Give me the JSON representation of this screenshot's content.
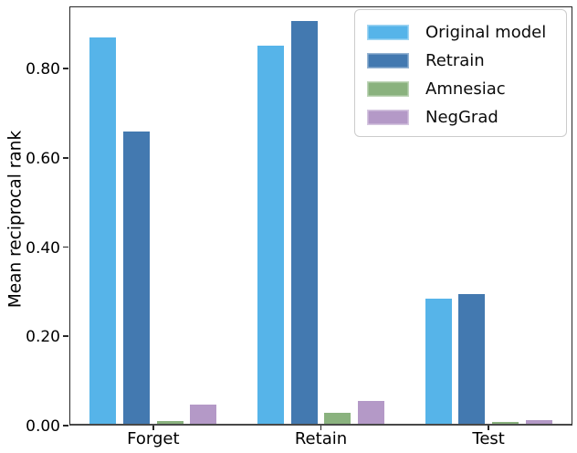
{
  "chart_data": {
    "type": "bar",
    "title": "",
    "xlabel": "",
    "ylabel": "Mean reciprocal rank",
    "categories": [
      "Forget",
      "Retain",
      "Test"
    ],
    "series": [
      {
        "name": "Original model",
        "color": "#56b4e9",
        "values": [
          0.87,
          0.852,
          0.285
        ]
      },
      {
        "name": "Retrain",
        "color": "#4379b0",
        "values": [
          0.66,
          0.908,
          0.295
        ]
      },
      {
        "name": "Amnesiac",
        "color": "#8ab27e",
        "values": [
          0.01,
          0.028,
          0.008
        ]
      },
      {
        "name": "NegGrad",
        "color": "#b499c7",
        "values": [
          0.048,
          0.055,
          0.012
        ]
      }
    ],
    "ylim": [
      0,
      0.94
    ],
    "yticks": [
      0.0,
      0.2,
      0.4,
      0.6,
      0.8
    ],
    "ytick_decimals": 2,
    "grid": false,
    "legend_position": "upper right",
    "background_color": "#ffffff",
    "spine_color": "#262626"
  }
}
